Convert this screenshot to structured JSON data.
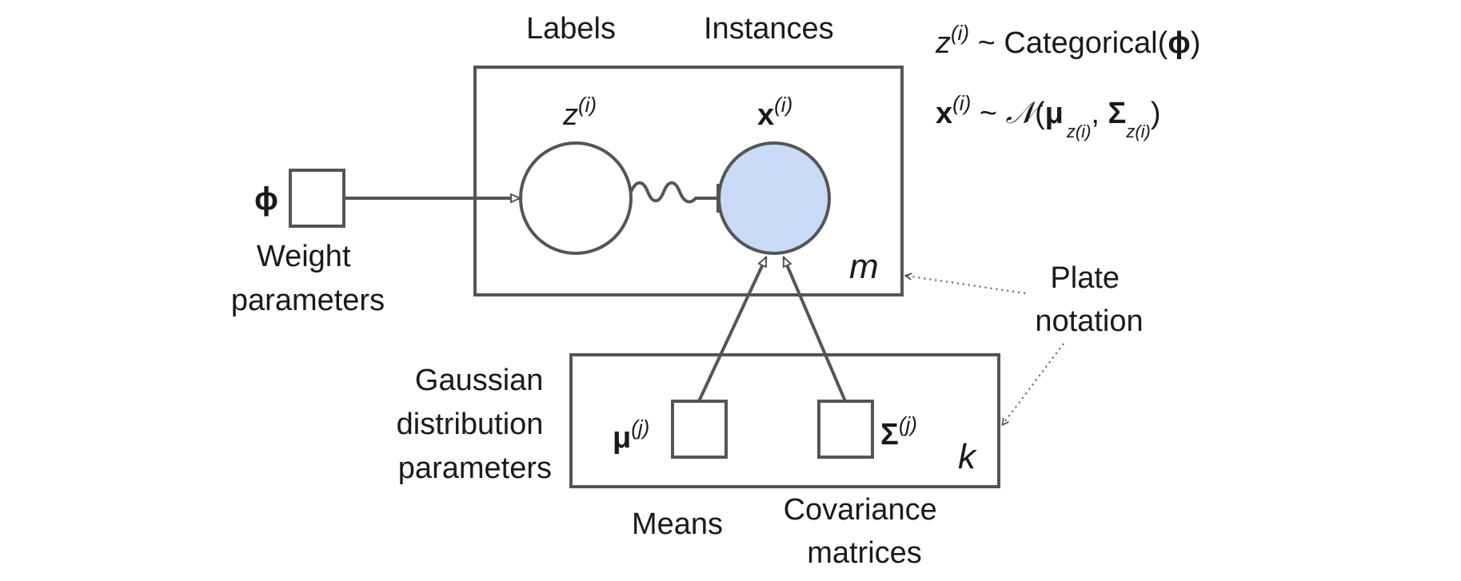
{
  "colors": {
    "stroke": "#555555",
    "observed_fill": "#c9dbf7",
    "text": "#1a1a1a"
  },
  "header": {
    "labels": "Labels",
    "instances": "Instances"
  },
  "equations": {
    "line1": {
      "var": "z",
      "sup": "(i)",
      "rest": " ~ Categorical(",
      "param": "ϕ",
      "close": ")"
    },
    "line2": {
      "var": "x",
      "sup": "(i)",
      "tilde": " ~ ",
      "normal": "𝒩",
      "open": "(",
      "mu": "μ",
      "mu_sub": "z(i)",
      "comma": ", ",
      "sigma": "Σ",
      "sigma_sub": "z(i)",
      "close": ")"
    }
  },
  "nodes": {
    "z": {
      "var": "z",
      "sup": "(i)"
    },
    "x": {
      "var": "x",
      "sup": "(i)"
    },
    "phi": {
      "symbol": "ϕ"
    },
    "mu": {
      "symbol": "μ",
      "sup": "(j)"
    },
    "sigma": {
      "symbol": "Σ",
      "sup": "(j)"
    }
  },
  "plates": {
    "instances_plate": "m",
    "gaussian_plate": "k"
  },
  "annotations": {
    "weight_params": [
      "Weight",
      "parameters"
    ],
    "gaussian_params": [
      "Gaussian",
      "distribution",
      "parameters"
    ],
    "means": "Means",
    "covariance": [
      "Covariance",
      "matrices"
    ],
    "plate_notation": [
      "Plate",
      "notation"
    ]
  }
}
